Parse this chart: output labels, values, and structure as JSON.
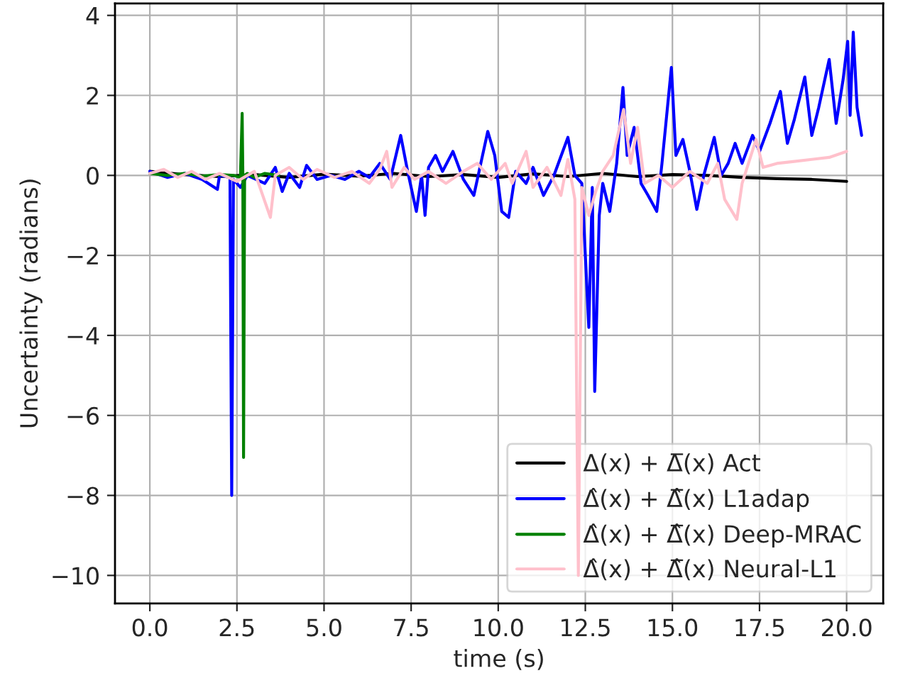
{
  "chart_data": {
    "type": "line",
    "xlabel": "time (s)",
    "ylabel": "Uncertainty (radians)",
    "xlim": [
      -1.0,
      21.05
    ],
    "ylim": [
      -10.7,
      4.3
    ],
    "xticks": [
      {
        "value": 0,
        "label": "0.0"
      },
      {
        "value": 2.5,
        "label": "2.5"
      },
      {
        "value": 5,
        "label": "5.0"
      },
      {
        "value": 7.5,
        "label": "7.5"
      },
      {
        "value": 10,
        "label": "10.0"
      },
      {
        "value": 12.5,
        "label": "12.5"
      },
      {
        "value": 15,
        "label": "15.0"
      },
      {
        "value": 17.5,
        "label": "17.5"
      },
      {
        "value": 20,
        "label": "20.0"
      }
    ],
    "yticks": [
      {
        "value": -10,
        "label": "−10"
      },
      {
        "value": -8,
        "label": "−8"
      },
      {
        "value": -6,
        "label": "−6"
      },
      {
        "value": -4,
        "label": "−4"
      },
      {
        "value": -2,
        "label": "−2"
      },
      0,
      2,
      4
    ],
    "grid": true,
    "legend": "bottom right",
    "line_style": "solid",
    "series": [
      {
        "name": "Δ(x) + Δ̅(x) Act",
        "color": "#000000",
        "x": [
          0,
          1,
          2,
          3,
          4,
          5,
          6,
          7,
          8,
          9,
          10,
          11,
          12,
          13,
          14,
          15,
          16,
          17,
          18,
          19,
          20
        ],
        "values": [
          0.1,
          0.02,
          -0.03,
          0.02,
          -0.05,
          0.03,
          -0.02,
          0.05,
          -0.03,
          0.02,
          -0.05,
          0.04,
          -0.03,
          0.05,
          -0.03,
          0.02,
          0.0,
          -0.05,
          -0.08,
          -0.1,
          -0.15
        ]
      },
      {
        "name": "Δ̂(x) + Δ̂̅(x) L1adap",
        "color": "#0000ff",
        "x": [
          0,
          0.5,
          1.0,
          1.5,
          1.94,
          2.0,
          2.3,
          2.35,
          2.4,
          2.6,
          2.8,
          3.3,
          3.6,
          3.8,
          4.0,
          4.3,
          4.5,
          4.8,
          5.2,
          5.6,
          6.0,
          6.3,
          6.6,
          6.9,
          7.2,
          7.4,
          7.65,
          7.8,
          7.9,
          8.0,
          8.2,
          8.4,
          8.7,
          9.0,
          9.3,
          9.5,
          9.7,
          9.9,
          10.1,
          10.3,
          10.5,
          10.8,
          11.0,
          11.3,
          11.6,
          12.0,
          12.2,
          12.4,
          12.6,
          12.7,
          12.77,
          12.9,
          13.0,
          13.2,
          13.4,
          13.58,
          13.7,
          13.9,
          14.1,
          14.3,
          14.55,
          14.7,
          14.97,
          15.1,
          15.3,
          15.5,
          15.7,
          15.9,
          16.2,
          16.4,
          16.6,
          16.8,
          17.0,
          17.3,
          17.5,
          17.8,
          18.1,
          18.3,
          18.5,
          18.8,
          19.0,
          19.2,
          19.5,
          19.7,
          19.9,
          20.03,
          20.1,
          20.19,
          20.3,
          20.43
        ],
        "values": [
          0.1,
          -0.05,
          0.05,
          -0.1,
          -0.35,
          0,
          -0.05,
          -8.0,
          -0.1,
          -0.3,
          0.0,
          -0.2,
          0.2,
          -0.4,
          0.05,
          -0.3,
          0.25,
          -0.1,
          0.0,
          -0.1,
          0.1,
          -0.05,
          0.3,
          -0.1,
          1.0,
          0.1,
          -0.9,
          0.0,
          -1.0,
          0.2,
          0.5,
          0.1,
          0.6,
          -0.1,
          -0.5,
          0.3,
          1.1,
          0.5,
          -0.9,
          -1.05,
          0.1,
          -0.2,
          0.2,
          -0.5,
          0.0,
          0.95,
          0.0,
          -0.2,
          -3.8,
          -0.3,
          -5.4,
          -1.0,
          -0.2,
          -0.9,
          0.3,
          2.2,
          0.5,
          1.2,
          -0.2,
          -0.5,
          -0.9,
          0.3,
          2.7,
          0.5,
          0.9,
          0.1,
          -0.85,
          0.0,
          0.95,
          0.0,
          0.3,
          0.8,
          0.3,
          1.0,
          0.6,
          1.3,
          2.1,
          0.8,
          1.4,
          2.46,
          1.0,
          1.7,
          2.9,
          1.3,
          2.4,
          3.35,
          1.5,
          3.58,
          1.7,
          1.0
        ]
      },
      {
        "name": "Δ̂(x) + Δ̂̅(x) Deep-MRAC",
        "color": "#008000",
        "x": [
          0,
          0.5,
          1.0,
          1.5,
          2.0,
          2.4,
          2.6,
          2.65,
          2.67,
          2.69,
          2.72,
          2.8,
          3.0,
          3.3,
          3.7
        ],
        "values": [
          0.05,
          0.0,
          0.05,
          -0.02,
          0.02,
          0.0,
          -0.05,
          1.55,
          0.0,
          -7.05,
          0.0,
          0.05,
          -0.05,
          0.05,
          0.0
        ]
      },
      {
        "name": "Δ̂(x) + Δ̂̅(x) Neural-L1",
        "color": "#ffc0cb",
        "x": [
          0,
          0.4,
          0.8,
          1.2,
          1.6,
          2.0,
          2.5,
          3.0,
          3.46,
          3.6,
          4.0,
          4.4,
          4.8,
          5.3,
          5.8,
          6.3,
          6.6,
          6.8,
          6.95,
          7.3,
          7.6,
          8.0,
          8.5,
          9.0,
          9.4,
          9.8,
          10.2,
          10.4,
          10.8,
          11.0,
          11.4,
          11.8,
          12.0,
          12.2,
          12.3,
          12.4,
          12.6,
          12.8,
          13.0,
          13.3,
          13.6,
          13.8,
          14.0,
          14.2,
          14.6,
          15.0,
          15.5,
          16.0,
          16.3,
          16.5,
          16.85,
          17.0,
          17.4,
          17.6,
          18.0,
          18.5,
          19.0,
          19.5,
          20.0
        ],
        "values": [
          0.05,
          0.15,
          -0.05,
          0.1,
          -0.1,
          0.05,
          -0.15,
          0.1,
          -1.05,
          0.0,
          0.2,
          -0.1,
          0.15,
          -0.05,
          0.1,
          -0.2,
          0.15,
          0.6,
          -0.3,
          0.2,
          -0.1,
          0.1,
          -0.2,
          0.1,
          0.3,
          -0.1,
          0.3,
          -0.2,
          0.6,
          -0.3,
          0.2,
          -0.5,
          0.4,
          -0.6,
          -10.0,
          -0.3,
          -1.0,
          -0.4,
          0.1,
          0.5,
          1.65,
          0.3,
          1.2,
          -0.2,
          0.0,
          -0.3,
          0.1,
          -0.2,
          0.3,
          -0.6,
          -1.1,
          -0.2,
          0.9,
          0.2,
          0.3,
          0.35,
          0.4,
          0.45,
          0.6
        ]
      }
    ]
  }
}
